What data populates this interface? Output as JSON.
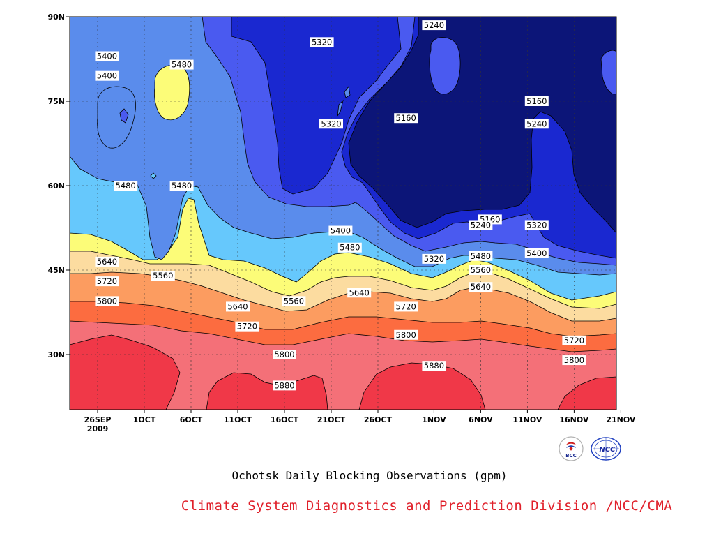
{
  "chart_data": {
    "type": "heatmap",
    "title": "",
    "x_ticks": [
      {
        "label": "26SEP",
        "sub": "2009"
      },
      {
        "label": "1OCT"
      },
      {
        "label": "6OCT"
      },
      {
        "label": "11OCT"
      },
      {
        "label": "16OCT"
      },
      {
        "label": "21OCT"
      },
      {
        "label": "26OCT"
      },
      {
        "label": "1NOV"
      },
      {
        "label": "6NOV"
      },
      {
        "label": "11NOV"
      },
      {
        "label": "16NOV"
      },
      {
        "label": "21NOV"
      }
    ],
    "y_ticks": [
      "90N",
      "75N",
      "60N",
      "45N",
      "30N"
    ],
    "levels": [
      5160,
      5240,
      5320,
      5400,
      5480,
      5560,
      5640,
      5720,
      5800,
      5880
    ],
    "band_colors": [
      "#0c1578",
      "#1a28d0",
      "#4a5af0",
      "#5a8cec",
      "#66c8fc",
      "#fcfc78",
      "#fcdca0",
      "#fc9c60",
      "#fc6c40",
      "#f47078",
      "#f03848"
    ],
    "contour_labels": [
      {
        "text": "5400",
        "x": "27SEP",
        "y": 83
      },
      {
        "text": "5400",
        "x": "27SEP",
        "y": 79.5
      },
      {
        "text": "5480",
        "x": "5OCT",
        "y": 81.5
      },
      {
        "text": "5320",
        "x": "20OCT",
        "y": 85.5
      },
      {
        "text": "5240",
        "x": "1NOV",
        "y": 88.5
      },
      {
        "text": "5160",
        "x": "12NOV",
        "y": 75
      },
      {
        "text": "5240",
        "x": "12NOV",
        "y": 71
      },
      {
        "text": "5160",
        "x": "29OCT",
        "y": 72
      },
      {
        "text": "5320",
        "x": "21OCT",
        "y": 71
      },
      {
        "text": "5480",
        "x": "29SEP",
        "y": 60
      },
      {
        "text": "5480",
        "x": "5OCT",
        "y": 60
      },
      {
        "text": "5160",
        "x": "7NOV",
        "y": 54
      },
      {
        "text": "5240",
        "x": "6NOV",
        "y": 53
      },
      {
        "text": "5320",
        "x": "12NOV",
        "y": 53
      },
      {
        "text": "5400",
        "x": "22OCT",
        "y": 52
      },
      {
        "text": "5480",
        "x": "23OCT",
        "y": 49
      },
      {
        "text": "5400",
        "x": "12NOV",
        "y": 48
      },
      {
        "text": "5320",
        "x": "1NOV",
        "y": 47
      },
      {
        "text": "5480",
        "x": "6NOV",
        "y": 47.5
      },
      {
        "text": "5640",
        "x": "27SEP",
        "y": 46.5
      },
      {
        "text": "5560",
        "x": "6NOV",
        "y": 45
      },
      {
        "text": "5560",
        "x": "3OCT",
        "y": 44
      },
      {
        "text": "5720",
        "x": "27SEP",
        "y": 43
      },
      {
        "text": "5640",
        "x": "6NOV",
        "y": 42
      },
      {
        "text": "5640",
        "x": "24OCT",
        "y": 41
      },
      {
        "text": "5560",
        "x": "17OCT",
        "y": 39.5
      },
      {
        "text": "5800",
        "x": "27SEP",
        "y": 39.5
      },
      {
        "text": "5640",
        "x": "11OCT",
        "y": 38.5
      },
      {
        "text": "5720",
        "x": "29OCT",
        "y": 38.5
      },
      {
        "text": "5720",
        "x": "12OCT",
        "y": 35
      },
      {
        "text": "5800",
        "x": "29OCT",
        "y": 33.5
      },
      {
        "text": "5720",
        "x": "16NOV",
        "y": 32.5
      },
      {
        "text": "5800",
        "x": "16OCT",
        "y": 30
      },
      {
        "text": "5800",
        "x": "16NOV",
        "y": 29
      },
      {
        "text": "5880",
        "x": "1NOV",
        "y": 28
      },
      {
        "text": "5880",
        "x": "16OCT",
        "y": 24.5
      }
    ]
  },
  "subtitle": "Ochotsk Daily Blocking Observations (gpm)",
  "credit": "Climate System Diagnostics and Prediction Division /NCC/CMA",
  "logos": [
    {
      "icon": "bcc-logo-icon",
      "text": "BCC"
    },
    {
      "icon": "ncc-logo-icon",
      "text": "NCC"
    }
  ]
}
